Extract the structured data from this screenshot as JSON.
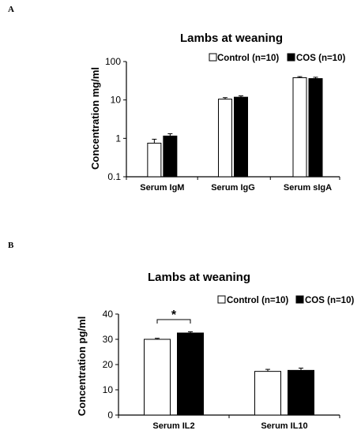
{
  "panel_labels": {
    "a": "A",
    "b": "B"
  },
  "colors": {
    "control": "#ffffff",
    "cos": "#000000",
    "stroke": "#000000"
  },
  "chart_data": [
    {
      "type": "bar",
      "title": "Lambs at weaning",
      "ylabel": "Concentration mg/ml",
      "xlabel": "",
      "yscale": "log",
      "ylim": [
        0.1,
        100
      ],
      "yticks": [
        0.1,
        1,
        10,
        100
      ],
      "ytick_labels": [
        "0.1",
        "1",
        "10",
        "100"
      ],
      "categories": [
        "Serum IgM",
        "Serum IgG",
        "Serum sIgA"
      ],
      "series": [
        {
          "name": "Control (n=10)",
          "color": "#ffffff",
          "values": [
            0.75,
            10.5,
            38
          ],
          "errors": [
            0.2,
            1.0,
            2.5
          ]
        },
        {
          "name": "COS (n=10)",
          "color": "#000000",
          "values": [
            1.15,
            11.8,
            36
          ],
          "errors": [
            0.17,
            1.0,
            3.0
          ]
        }
      ],
      "legend": "top-right",
      "grid": false,
      "annotations": []
    },
    {
      "type": "bar",
      "title": "Lambs at weaning",
      "ylabel": "Concentration pg/ml",
      "xlabel": "",
      "yscale": "linear",
      "ylim": [
        0,
        40
      ],
      "yticks": [
        0,
        10,
        20,
        30,
        40
      ],
      "ytick_labels": [
        "0",
        "10",
        "20",
        "30",
        "40"
      ],
      "categories": [
        "Serum IL2",
        "Serum IL10"
      ],
      "series": [
        {
          "name": "Control (n=10)",
          "color": "#ffffff",
          "values": [
            30,
            17.3
          ],
          "errors": [
            0.4,
            0.8
          ]
        },
        {
          "name": "COS (n=10)",
          "color": "#000000",
          "values": [
            32.5,
            17.7
          ],
          "errors": [
            0.5,
            0.9
          ]
        }
      ],
      "legend": "top-right",
      "grid": false,
      "annotations": [
        {
          "text": "*",
          "category": "Serum IL2",
          "type": "significance-bracket"
        }
      ]
    }
  ]
}
